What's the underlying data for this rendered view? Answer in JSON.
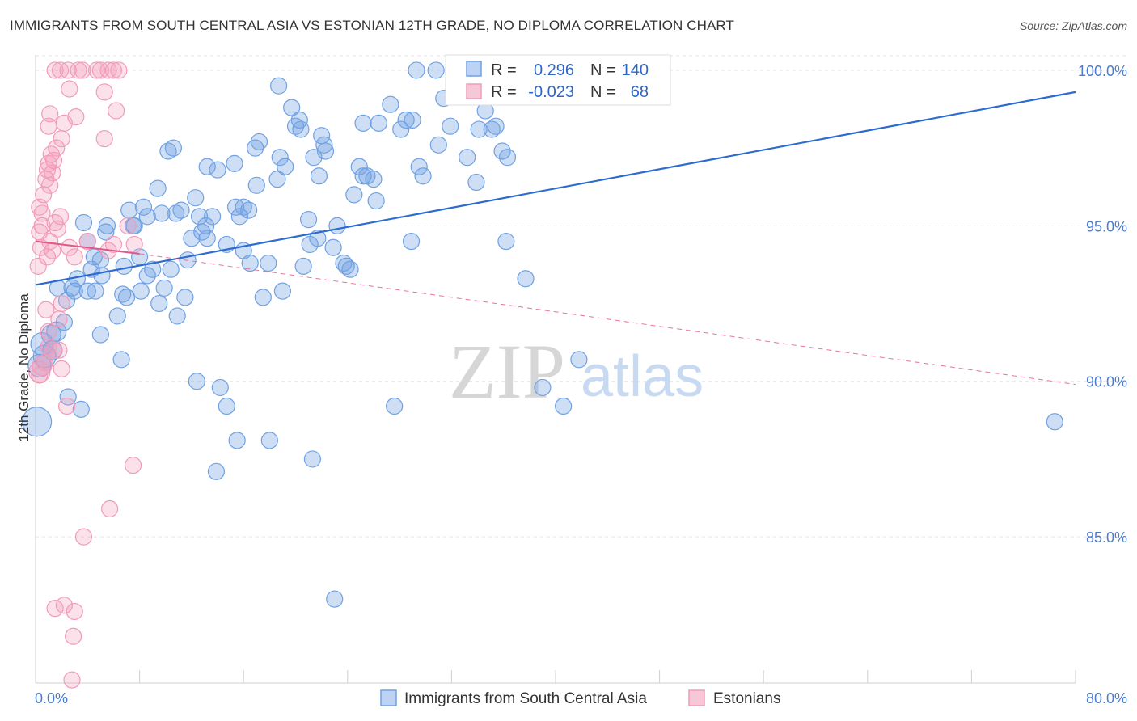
{
  "header": {
    "title": "IMMIGRANTS FROM SOUTH CENTRAL ASIA VS ESTONIAN 12TH GRADE, NO DIPLOMA CORRELATION CHART",
    "source": "Source: ZipAtlas.com"
  },
  "watermark": {
    "zip": "ZIP",
    "atlas": "atlas"
  },
  "legend": {
    "rows": [
      {
        "r_label": "R =",
        "r_value": "0.296",
        "n_label": "N =",
        "n_value": "140",
        "color": "#6fa1e3"
      },
      {
        "r_label": "R =",
        "r_value": "-0.023",
        "n_label": "N =",
        "n_value": "68",
        "color": "#f29bb8"
      }
    ]
  },
  "chart_data": {
    "type": "scatter",
    "title": "IMMIGRANTS FROM SOUTH CENTRAL ASIA VS ESTONIAN 12TH GRADE, NO DIPLOMA CORRELATION CHART",
    "xlabel": "",
    "ylabel": "12th Grade, No Diploma",
    "xlim": [
      0,
      80
    ],
    "ylim": [
      80.3,
      100.7
    ],
    "x_tick_labels": [
      "0.0%",
      "80.0%"
    ],
    "y_ticks": [
      85,
      90,
      95,
      100
    ],
    "y_tick_labels": [
      "85.0%",
      "90.0%",
      "95.0%",
      "100.0%"
    ],
    "grid": true,
    "legend_position": "top-center",
    "series": [
      {
        "name": "Immigrants from South Central Asia",
        "color": "#6fa1e3",
        "trend": {
          "x": [
            0,
            80
          ],
          "y": [
            93.1,
            99.3
          ],
          "style": "solid"
        },
        "points": [
          [
            0.1,
            88.7,
            18
          ],
          [
            0.3,
            90.5,
            14
          ],
          [
            0.5,
            91.2,
            14
          ],
          [
            0.7,
            90.8,
            14
          ],
          [
            1.2,
            91.5,
            12
          ],
          [
            1.6,
            91.6,
            12
          ],
          [
            1.3,
            91.0,
            12
          ],
          [
            2.2,
            91.9,
            10
          ],
          [
            1.7,
            93.0,
            10
          ],
          [
            2.4,
            92.6,
            10
          ],
          [
            2.8,
            93.0,
            10
          ],
          [
            3.2,
            93.3,
            10
          ],
          [
            4.3,
            93.6,
            10
          ],
          [
            4.6,
            92.9,
            10
          ],
          [
            4.5,
            94.0,
            10
          ],
          [
            4.0,
            94.5,
            10
          ],
          [
            3.7,
            95.1,
            10
          ],
          [
            5.4,
            94.8,
            10
          ],
          [
            5.5,
            95.0,
            10
          ],
          [
            5.0,
            93.9,
            10
          ],
          [
            2.5,
            89.5,
            10
          ],
          [
            3.5,
            89.1,
            10
          ],
          [
            5.0,
            91.5,
            10
          ],
          [
            6.3,
            92.1,
            10
          ],
          [
            6.6,
            90.7,
            10
          ],
          [
            6.8,
            93.7,
            10
          ],
          [
            7.0,
            92.7,
            10
          ],
          [
            7.2,
            95.5,
            10
          ],
          [
            7.6,
            95.0,
            10
          ],
          [
            8.0,
            94.0,
            10
          ],
          [
            8.1,
            92.9,
            10
          ],
          [
            8.6,
            93.4,
            10
          ],
          [
            8.6,
            95.3,
            10
          ],
          [
            8.3,
            95.6,
            10
          ],
          [
            9.0,
            93.6,
            10
          ],
          [
            9.5,
            92.5,
            10
          ],
          [
            9.7,
            95.4,
            10
          ],
          [
            9.4,
            96.2,
            10
          ],
          [
            10.2,
            97.4,
            10
          ],
          [
            10.6,
            97.5,
            10
          ],
          [
            10.4,
            93.6,
            10
          ],
          [
            10.8,
            95.4,
            10
          ],
          [
            10.9,
            92.1,
            10
          ],
          [
            11.5,
            92.7,
            10
          ],
          [
            11.7,
            93.9,
            10
          ],
          [
            12.0,
            94.6,
            10
          ],
          [
            12.3,
            95.9,
            10
          ],
          [
            12.4,
            90.0,
            10
          ],
          [
            12.6,
            95.3,
            10
          ],
          [
            12.8,
            94.8,
            10
          ],
          [
            13.1,
            95.0,
            10
          ],
          [
            13.2,
            94.6,
            10
          ],
          [
            13.2,
            96.9,
            10
          ],
          [
            13.6,
            95.3,
            10
          ],
          [
            14.0,
            96.8,
            10
          ],
          [
            14.2,
            89.8,
            10
          ],
          [
            14.7,
            94.4,
            10
          ],
          [
            14.7,
            89.2,
            10
          ],
          [
            15.3,
            97.0,
            10
          ],
          [
            15.4,
            95.6,
            10
          ],
          [
            15.7,
            95.3,
            10
          ],
          [
            16.0,
            95.6,
            10
          ],
          [
            16.4,
            95.5,
            10
          ],
          [
            16.0,
            94.2,
            10
          ],
          [
            16.5,
            93.8,
            10
          ],
          [
            17.0,
            96.3,
            10
          ],
          [
            16.9,
            97.5,
            10
          ],
          [
            17.2,
            97.7,
            10
          ],
          [
            17.5,
            92.7,
            10
          ],
          [
            17.9,
            93.8,
            10
          ],
          [
            18.6,
            96.5,
            10
          ],
          [
            18.7,
            99.5,
            10
          ],
          [
            18.8,
            97.2,
            10
          ],
          [
            19.2,
            96.9,
            10
          ],
          [
            19.7,
            98.8,
            10
          ],
          [
            20.0,
            98.2,
            10
          ],
          [
            20.3,
            98.4,
            10
          ],
          [
            20.4,
            98.1,
            10
          ],
          [
            20.6,
            93.7,
            10
          ],
          [
            21.0,
            95.2,
            10
          ],
          [
            21.1,
            94.4,
            10
          ],
          [
            21.4,
            97.2,
            10
          ],
          [
            21.8,
            96.6,
            10
          ],
          [
            22.0,
            97.9,
            10
          ],
          [
            22.2,
            97.6,
            10
          ],
          [
            22.3,
            97.4,
            10
          ],
          [
            22.9,
            94.3,
            10
          ],
          [
            23.2,
            95.0,
            10
          ],
          [
            23.7,
            93.8,
            10
          ],
          [
            23.9,
            93.7,
            10
          ],
          [
            24.2,
            93.6,
            10
          ],
          [
            24.5,
            96.0,
            10
          ],
          [
            24.9,
            96.9,
            10
          ],
          [
            25.2,
            96.6,
            10
          ],
          [
            25.2,
            98.3,
            10
          ],
          [
            25.5,
            96.6,
            10
          ],
          [
            26.0,
            96.5,
            10
          ],
          [
            26.2,
            95.8,
            10
          ],
          [
            26.4,
            98.3,
            10
          ],
          [
            27.3,
            98.9,
            10
          ],
          [
            28.1,
            98.1,
            10
          ],
          [
            28.5,
            98.4,
            10
          ],
          [
            28.9,
            94.5,
            10
          ],
          [
            29.3,
            100.0,
            10
          ],
          [
            29.5,
            96.9,
            10
          ],
          [
            29.8,
            96.6,
            10
          ],
          [
            30.8,
            100.0,
            10
          ],
          [
            31.4,
            99.1,
            10
          ],
          [
            31.9,
            98.2,
            10
          ],
          [
            33.2,
            97.2,
            10
          ],
          [
            33.9,
            96.4,
            10
          ],
          [
            34.1,
            98.1,
            10
          ],
          [
            34.6,
            98.7,
            10
          ],
          [
            35.1,
            98.1,
            10
          ],
          [
            35.4,
            98.2,
            10
          ],
          [
            35.9,
            97.4,
            10
          ],
          [
            36.3,
            97.2,
            10
          ],
          [
            36.2,
            94.5,
            10
          ],
          [
            37.7,
            93.3,
            10
          ],
          [
            39.0,
            89.8,
            10
          ],
          [
            40.6,
            89.2,
            10
          ],
          [
            41.8,
            90.7,
            10
          ],
          [
            27.6,
            89.2,
            10
          ],
          [
            18.0,
            88.1,
            10
          ],
          [
            15.5,
            88.1,
            10
          ],
          [
            13.9,
            87.1,
            10
          ],
          [
            21.3,
            87.5,
            10
          ],
          [
            23.0,
            83.0,
            10
          ],
          [
            6.7,
            92.8,
            10
          ],
          [
            9.9,
            93.0,
            10
          ],
          [
            5.1,
            93.4,
            10
          ],
          [
            4.0,
            92.9,
            10
          ],
          [
            7.5,
            95.0,
            10
          ],
          [
            11.2,
            95.5,
            10
          ],
          [
            3.0,
            92.9,
            10
          ],
          [
            19.0,
            92.9,
            10
          ],
          [
            21.7,
            94.6,
            10
          ],
          [
            78.4,
            88.7,
            10
          ],
          [
            29.0,
            98.4,
            10
          ],
          [
            31.0,
            97.6,
            10
          ]
        ]
      },
      {
        "name": "Estonians",
        "color": "#f29bb8",
        "trend": {
          "x": [
            0,
            8
          ],
          "y": [
            94.5,
            94.1
          ],
          "style": "solid",
          "extended": {
            "x": [
              8,
              80
            ],
            "y": [
              94.1,
              89.9
            ],
            "style": "dashed"
          }
        },
        "points": [
          [
            0.3,
            90.3,
            13
          ],
          [
            0.5,
            90.5,
            12
          ],
          [
            0.3,
            90.2,
            10
          ],
          [
            0.7,
            90.6,
            10
          ],
          [
            0.2,
            93.7,
            10
          ],
          [
            0.4,
            94.3,
            10
          ],
          [
            0.3,
            94.8,
            10
          ],
          [
            0.5,
            95.0,
            10
          ],
          [
            0.3,
            95.6,
            10
          ],
          [
            0.5,
            95.4,
            10
          ],
          [
            0.6,
            96.0,
            10
          ],
          [
            0.8,
            96.5,
            10
          ],
          [
            0.9,
            96.8,
            10
          ],
          [
            1.0,
            97.0,
            10
          ],
          [
            1.1,
            96.3,
            10
          ],
          [
            1.3,
            96.7,
            10
          ],
          [
            1.2,
            97.3,
            10
          ],
          [
            1.4,
            97.1,
            10
          ],
          [
            0.9,
            94.0,
            10
          ],
          [
            1.1,
            94.5,
            10
          ],
          [
            1.3,
            94.2,
            10
          ],
          [
            1.5,
            95.1,
            10
          ],
          [
            1.7,
            94.9,
            10
          ],
          [
            1.9,
            95.3,
            10
          ],
          [
            1.0,
            98.2,
            10
          ],
          [
            1.1,
            98.6,
            10
          ],
          [
            1.6,
            97.5,
            10
          ],
          [
            2.0,
            97.8,
            10
          ],
          [
            2.2,
            98.3,
            10
          ],
          [
            2.6,
            99.4,
            10
          ],
          [
            1.5,
            100.0,
            10
          ],
          [
            1.9,
            100.0,
            10
          ],
          [
            2.5,
            100.0,
            10
          ],
          [
            3.3,
            100.0,
            10
          ],
          [
            3.6,
            100.0,
            10
          ],
          [
            4.7,
            100.0,
            10
          ],
          [
            5.0,
            100.0,
            10
          ],
          [
            5.3,
            99.3,
            10
          ],
          [
            5.6,
            100.0,
            10
          ],
          [
            6.0,
            100.0,
            10
          ],
          [
            6.2,
            98.7,
            10
          ],
          [
            6.4,
            100.0,
            10
          ],
          [
            3.1,
            98.5,
            10
          ],
          [
            5.3,
            97.8,
            10
          ],
          [
            2.6,
            94.3,
            10
          ],
          [
            3.0,
            94.0,
            10
          ],
          [
            5.6,
            94.2,
            10
          ],
          [
            6.0,
            94.4,
            10
          ],
          [
            7.1,
            95.0,
            10
          ],
          [
            7.6,
            94.4,
            10
          ],
          [
            1.0,
            91.1,
            10
          ],
          [
            1.4,
            91.0,
            10
          ],
          [
            1.8,
            92.0,
            10
          ],
          [
            2.0,
            92.5,
            10
          ],
          [
            0.8,
            92.3,
            10
          ],
          [
            1.0,
            91.6,
            10
          ],
          [
            1.8,
            91.0,
            10
          ],
          [
            2.4,
            89.2,
            10
          ],
          [
            2.0,
            90.4,
            10
          ],
          [
            7.5,
            87.3,
            10
          ],
          [
            5.7,
            85.9,
            10
          ],
          [
            3.7,
            85.0,
            10
          ],
          [
            1.5,
            82.7,
            10
          ],
          [
            2.2,
            82.8,
            10
          ],
          [
            3.0,
            82.6,
            10
          ],
          [
            2.9,
            81.8,
            10
          ],
          [
            2.8,
            80.4,
            10
          ],
          [
            4.0,
            94.5,
            10
          ]
        ]
      }
    ]
  },
  "bottom_legend": [
    {
      "label": "Immigrants from South Central Asia",
      "color": "#6fa1e3"
    },
    {
      "label": "Estonians",
      "color": "#f29bb8"
    }
  ]
}
